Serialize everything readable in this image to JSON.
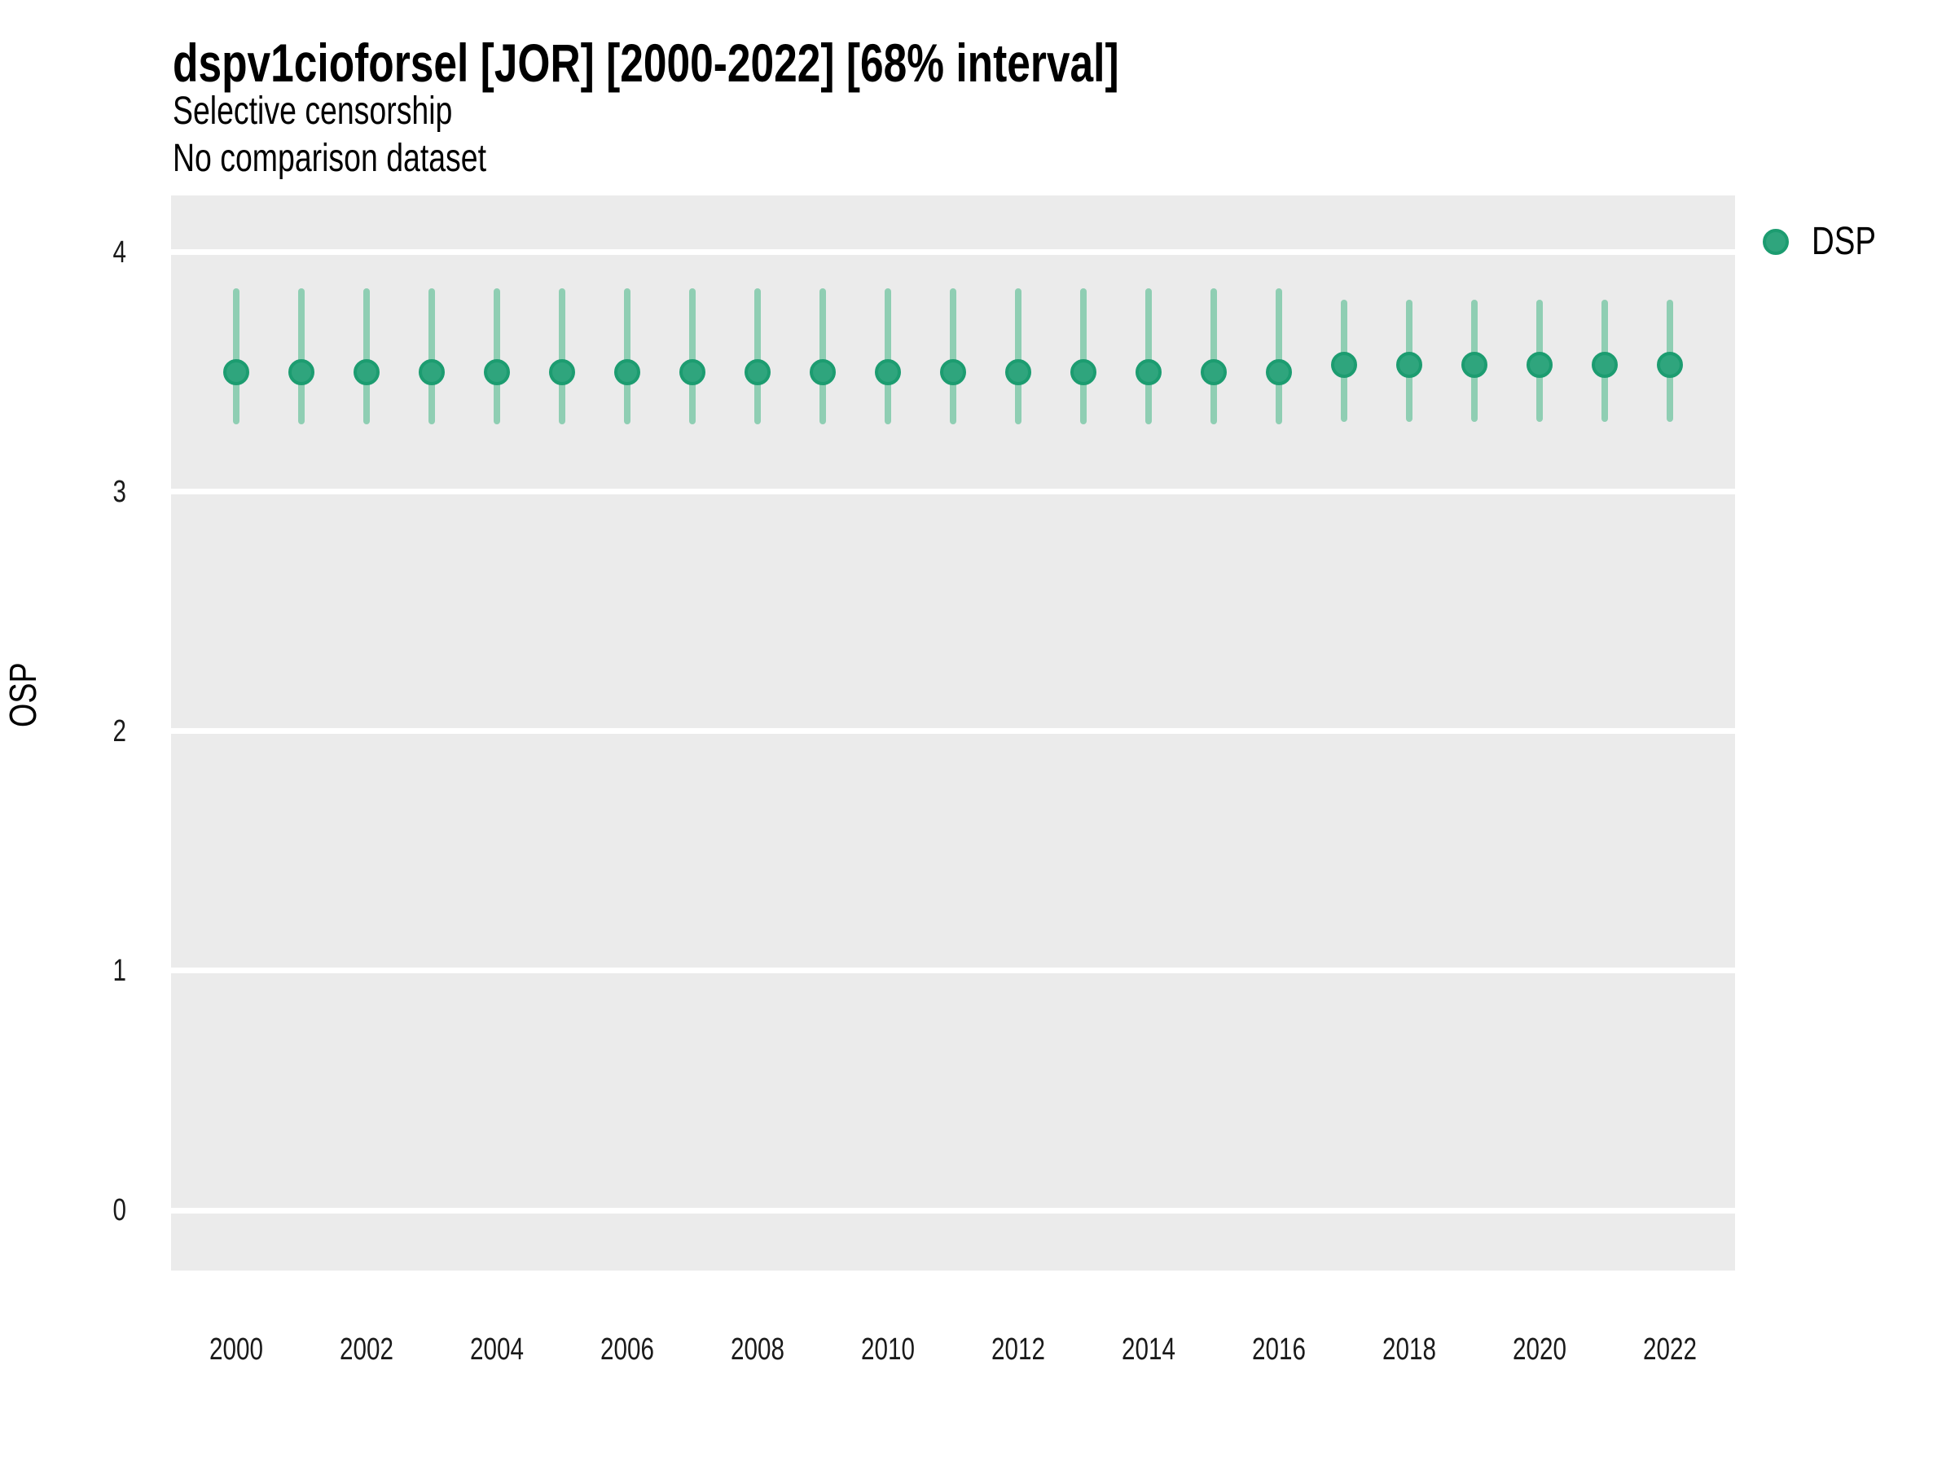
{
  "title": "dspv1cioforsel [JOR] [2000-2022] [68% interval]",
  "subtitle_line1": "Selective censorship",
  "subtitle_line2": "No comparison dataset",
  "legend": {
    "position": "right",
    "items": [
      {
        "label": "DSP"
      }
    ]
  },
  "colors": {
    "background": "#FFFFFF",
    "panel_background": "#EBEBEB",
    "gridline": "#FFFFFF",
    "point_fill": "#2FA57D",
    "point_stroke": "#1C9C70",
    "interval_bar": "#8FCEB3",
    "title_text": "#000000",
    "tick_text": "#1A1A1A"
  },
  "chart_data": {
    "type": "pointrange",
    "title": "dspv1cioforsel [JOR] [2000-2022] [68% interval]",
    "subtitle": [
      "Selective censorship",
      "No comparison dataset"
    ],
    "xlabel": "",
    "ylabel": "OSP",
    "interval_level": "68%",
    "legend_position": "right",
    "grid": "major-y only, white lines on gray panel",
    "xlim": [
      1999,
      2023
    ],
    "ylim": [
      -0.25,
      4.25
    ],
    "x_ticks": [
      2000,
      2002,
      2004,
      2006,
      2008,
      2010,
      2012,
      2014,
      2016,
      2018,
      2020,
      2022
    ],
    "y_ticks": [
      0,
      1,
      2,
      3,
      4
    ],
    "series": [
      {
        "name": "DSP",
        "points": [
          {
            "x": 2000,
            "y": 3.5,
            "ymin": 3.28,
            "ymax": 3.85
          },
          {
            "x": 2001,
            "y": 3.5,
            "ymin": 3.28,
            "ymax": 3.85
          },
          {
            "x": 2002,
            "y": 3.5,
            "ymin": 3.28,
            "ymax": 3.85
          },
          {
            "x": 2003,
            "y": 3.5,
            "ymin": 3.28,
            "ymax": 3.85
          },
          {
            "x": 2004,
            "y": 3.5,
            "ymin": 3.28,
            "ymax": 3.85
          },
          {
            "x": 2005,
            "y": 3.5,
            "ymin": 3.28,
            "ymax": 3.85
          },
          {
            "x": 2006,
            "y": 3.5,
            "ymin": 3.28,
            "ymax": 3.85
          },
          {
            "x": 2007,
            "y": 3.5,
            "ymin": 3.28,
            "ymax": 3.85
          },
          {
            "x": 2008,
            "y": 3.5,
            "ymin": 3.28,
            "ymax": 3.85
          },
          {
            "x": 2009,
            "y": 3.5,
            "ymin": 3.28,
            "ymax": 3.85
          },
          {
            "x": 2010,
            "y": 3.5,
            "ymin": 3.28,
            "ymax": 3.85
          },
          {
            "x": 2011,
            "y": 3.5,
            "ymin": 3.28,
            "ymax": 3.85
          },
          {
            "x": 2012,
            "y": 3.5,
            "ymin": 3.28,
            "ymax": 3.85
          },
          {
            "x": 2013,
            "y": 3.5,
            "ymin": 3.28,
            "ymax": 3.85
          },
          {
            "x": 2014,
            "y": 3.5,
            "ymin": 3.28,
            "ymax": 3.85
          },
          {
            "x": 2015,
            "y": 3.5,
            "ymin": 3.28,
            "ymax": 3.85
          },
          {
            "x": 2016,
            "y": 3.5,
            "ymin": 3.28,
            "ymax": 3.85
          },
          {
            "x": 2017,
            "y": 3.53,
            "ymin": 3.29,
            "ymax": 3.8
          },
          {
            "x": 2018,
            "y": 3.53,
            "ymin": 3.29,
            "ymax": 3.8
          },
          {
            "x": 2019,
            "y": 3.53,
            "ymin": 3.29,
            "ymax": 3.8
          },
          {
            "x": 2020,
            "y": 3.53,
            "ymin": 3.29,
            "ymax": 3.8
          },
          {
            "x": 2021,
            "y": 3.53,
            "ymin": 3.29,
            "ymax": 3.8
          },
          {
            "x": 2022,
            "y": 3.53,
            "ymin": 3.29,
            "ymax": 3.8
          }
        ]
      }
    ]
  }
}
